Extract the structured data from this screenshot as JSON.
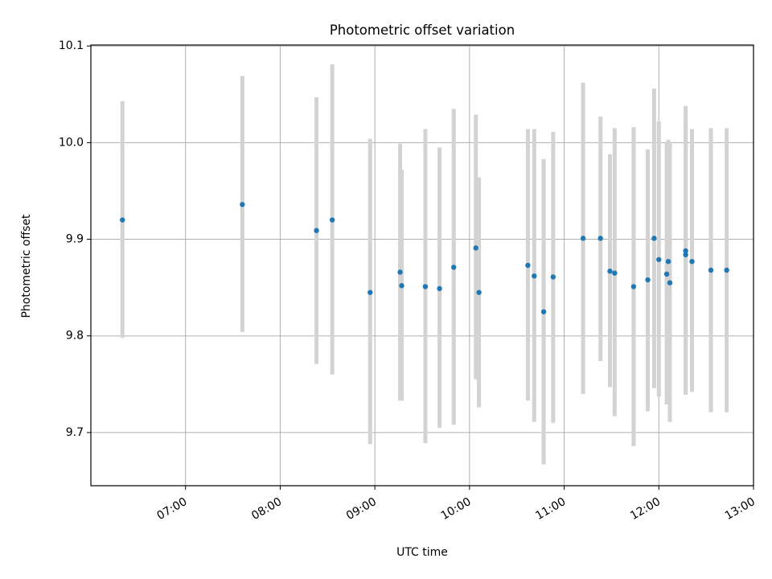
{
  "chart_data": {
    "type": "scatter",
    "title": "Photometric offset variation",
    "xlabel": "UTC time",
    "ylabel": "Photometric offset",
    "xlim": [
      "06:00",
      "13:00"
    ],
    "ylim": [
      9.645,
      10.101
    ],
    "grid": true,
    "legend": "none",
    "x_ticks": [
      "07:00",
      "08:00",
      "09:00",
      "10:00",
      "11:00",
      "12:00",
      "13:00"
    ],
    "y_ticks": [
      "9.7",
      "9.8",
      "9.9",
      "10.0",
      "10.1"
    ],
    "colors": {
      "marker": "#1f77b4",
      "errorbar": "#d3d3d3",
      "grid": "#b0b0b0"
    },
    "series": [
      {
        "points": [
          {
            "x": "06:20",
            "y": 9.92,
            "yerr_low": 9.798,
            "yerr_high": 10.043
          },
          {
            "x": "07:36",
            "y": 9.936,
            "yerr_low": 9.804,
            "yerr_high": 10.069
          },
          {
            "x": "08:23",
            "y": 9.909,
            "yerr_low": 9.771,
            "yerr_high": 10.047
          },
          {
            "x": "08:33",
            "y": 9.92,
            "yerr_low": 9.76,
            "yerr_high": 10.081
          },
          {
            "x": "08:57",
            "y": 9.845,
            "yerr_low": 9.688,
            "yerr_high": 10.004
          },
          {
            "x": "09:16",
            "y": 9.866,
            "yerr_low": 9.733,
            "yerr_high": 9.999
          },
          {
            "x": "09:17",
            "y": 9.852,
            "yerr_low": 9.733,
            "yerr_high": 9.972
          },
          {
            "x": "09:32",
            "y": 9.851,
            "yerr_low": 9.689,
            "yerr_high": 10.014
          },
          {
            "x": "09:41",
            "y": 9.849,
            "yerr_low": 9.705,
            "yerr_high": 9.995
          },
          {
            "x": "09:50",
            "y": 9.871,
            "yerr_low": 9.708,
            "yerr_high": 10.035
          },
          {
            "x": "10:04",
            "y": 9.891,
            "yerr_low": 9.755,
            "yerr_high": 10.029
          },
          {
            "x": "10:06",
            "y": 9.845,
            "yerr_low": 9.726,
            "yerr_high": 9.964
          },
          {
            "x": "10:37",
            "y": 9.873,
            "yerr_low": 9.733,
            "yerr_high": 10.014
          },
          {
            "x": "10:41",
            "y": 9.862,
            "yerr_low": 9.711,
            "yerr_high": 10.014
          },
          {
            "x": "10:47",
            "y": 9.825,
            "yerr_low": 9.667,
            "yerr_high": 9.983
          },
          {
            "x": "10:53",
            "y": 9.861,
            "yerr_low": 9.71,
            "yerr_high": 10.011
          },
          {
            "x": "11:12",
            "y": 9.901,
            "yerr_low": 9.74,
            "yerr_high": 10.062
          },
          {
            "x": "11:23",
            "y": 9.901,
            "yerr_low": 9.774,
            "yerr_high": 10.027
          },
          {
            "x": "11:29",
            "y": 9.867,
            "yerr_low": 9.747,
            "yerr_high": 9.988
          },
          {
            "x": "11:32",
            "y": 9.865,
            "yerr_low": 9.717,
            "yerr_high": 10.015
          },
          {
            "x": "11:44",
            "y": 9.851,
            "yerr_low": 9.686,
            "yerr_high": 10.016
          },
          {
            "x": "11:53",
            "y": 9.858,
            "yerr_low": 9.722,
            "yerr_high": 9.993
          },
          {
            "x": "11:57",
            "y": 9.901,
            "yerr_low": 9.746,
            "yerr_high": 10.056
          },
          {
            "x": "12:00",
            "y": 9.879,
            "yerr_low": 9.737,
            "yerr_high": 10.022
          },
          {
            "x": "12:05",
            "y": 9.864,
            "yerr_low": 9.729,
            "yerr_high": 10.0
          },
          {
            "x": "12:06",
            "y": 9.877,
            "yerr_low": 9.752,
            "yerr_high": 10.003
          },
          {
            "x": "12:07",
            "y": 9.855,
            "yerr_low": 9.711,
            "yerr_high": 10.0
          },
          {
            "x": "12:17",
            "y": 9.888,
            "yerr_low": 9.739,
            "yerr_high": 10.038
          },
          {
            "x": "12:17",
            "y": 9.884,
            "yerr_low": 9.742,
            "yerr_high": 10.025
          },
          {
            "x": "12:21",
            "y": 9.877,
            "yerr_low": 9.742,
            "yerr_high": 10.014
          },
          {
            "x": "12:33",
            "y": 9.868,
            "yerr_low": 9.721,
            "yerr_high": 10.015
          },
          {
            "x": "12:43",
            "y": 9.868,
            "yerr_low": 9.721,
            "yerr_high": 10.015
          }
        ]
      }
    ]
  }
}
